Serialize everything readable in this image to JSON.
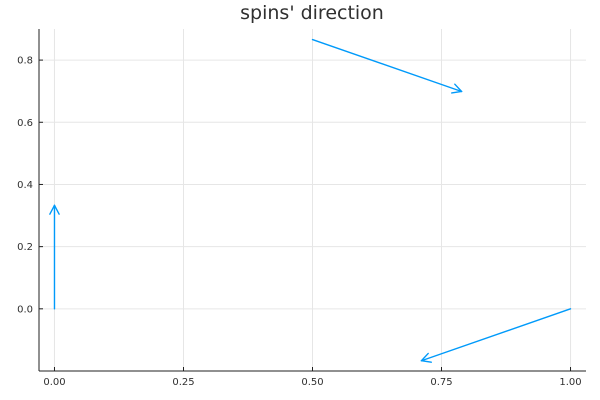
{
  "chart_data": {
    "type": "quiver",
    "title": "spins' direction",
    "xlabel": "",
    "ylabel": "",
    "xlim": [
      -0.03,
      1.03
    ],
    "ylim": [
      -0.2,
      0.9
    ],
    "x_ticks": [
      0.0,
      0.25,
      0.5,
      0.75,
      1.0
    ],
    "x_tick_labels": [
      "0.00",
      "0.25",
      "0.50",
      "0.75",
      "1.00"
    ],
    "y_ticks": [
      0.0,
      0.2,
      0.4,
      0.6,
      0.8
    ],
    "y_tick_labels": [
      "0.0",
      "0.2",
      "0.4",
      "0.6",
      "0.8"
    ],
    "grid": true,
    "legend": "none",
    "color": "#009AFA",
    "arrows": [
      {
        "x": 0.0,
        "y": 0.0,
        "u": 0.0,
        "v": 0.333
      },
      {
        "x": 0.5,
        "y": 0.866,
        "u": 0.289,
        "v": -0.167
      },
      {
        "x": 1.0,
        "y": 0.0,
        "u": -0.289,
        "v": -0.167
      }
    ]
  }
}
